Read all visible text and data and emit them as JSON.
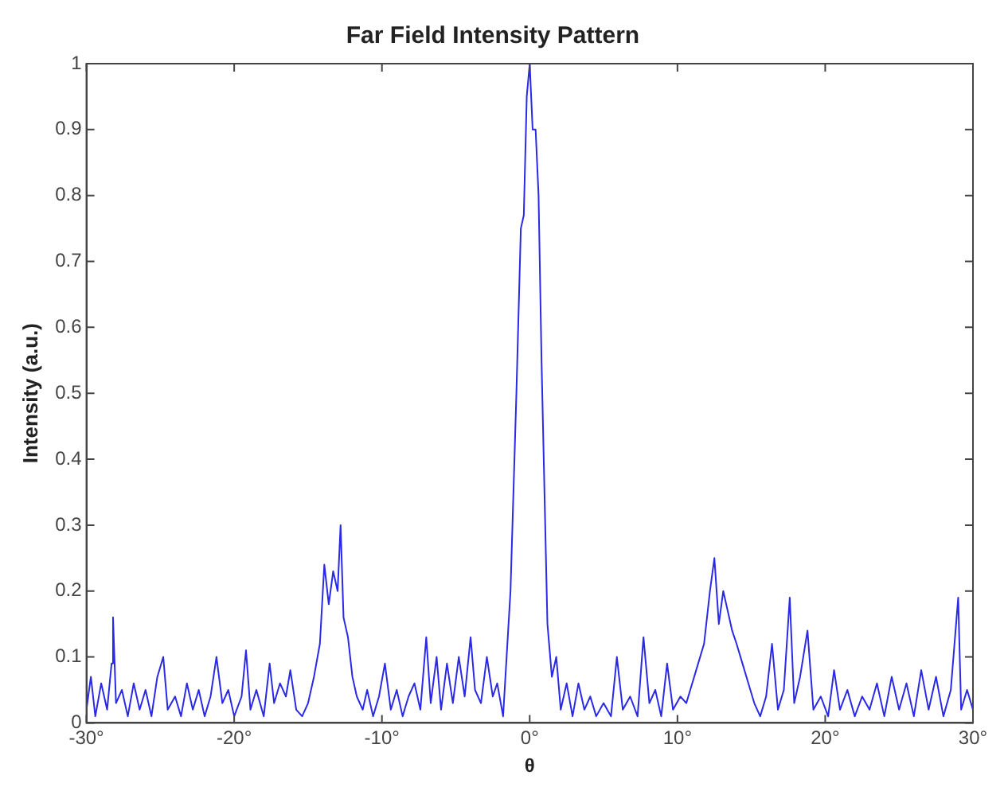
{
  "chart_data": {
    "type": "line",
    "title": "Far Field Intensity Pattern",
    "xlabel": "θ",
    "ylabel": "Intensity (a.u.)",
    "xlim": [
      -30,
      30
    ],
    "xticks": [
      {
        "value": -30,
        "label": "-30°"
      },
      {
        "value": -20,
        "label": "-20°"
      },
      {
        "value": -10,
        "label": "-10°"
      },
      {
        "value": 0,
        "label": "0°"
      },
      {
        "value": 10,
        "label": "10°"
      },
      {
        "value": 20,
        "label": "20°"
      },
      {
        "value": 30,
        "label": "30°"
      }
    ],
    "ylim": [
      0,
      1
    ],
    "yticks": [
      0,
      0.1,
      0.2,
      0.3,
      0.4,
      0.5,
      0.6,
      0.7,
      0.8,
      0.9,
      1
    ],
    "grid": false,
    "legend": false,
    "marker": "none",
    "line_style": "solid",
    "series": [
      {
        "color": "#2a2ae6",
        "x": [
          -30,
          -29.7,
          -29.4,
          -29,
          -28.6,
          -28.3,
          -28.2,
          -28,
          -27.6,
          -27.2,
          -26.8,
          -26.4,
          -26,
          -25.6,
          -25.2,
          -24.8,
          -24.5,
          -24,
          -23.6,
          -23.2,
          -22.8,
          -22.4,
          -22,
          -21.6,
          -21.2,
          -20.8,
          -20.4,
          -20,
          -19.5,
          -19.2,
          -18.9,
          -18.5,
          -18,
          -17.6,
          -17.3,
          -16.9,
          -16.5,
          -16.2,
          -15.8,
          -15.4,
          -15,
          -14.6,
          -14.2,
          -13.9,
          -13.6,
          -13.3,
          -13,
          -12.8,
          -12.6,
          -12.3,
          -12,
          -11.7,
          -11.3,
          -11,
          -10.6,
          -10.2,
          -9.8,
          -9.4,
          -9,
          -8.6,
          -8.2,
          -7.8,
          -7.4,
          -7,
          -6.7,
          -6.3,
          -6,
          -5.6,
          -5.2,
          -4.8,
          -4.4,
          -4,
          -3.7,
          -3.3,
          -2.9,
          -2.5,
          -2.2,
          -1.8,
          -1.3,
          -0.9,
          -0.6,
          -0.4,
          -0.2,
          0,
          0.2,
          0.4,
          0.6,
          0.8,
          1,
          1.2,
          1.5,
          1.8,
          2.1,
          2.5,
          2.9,
          3.3,
          3.7,
          4.1,
          4.5,
          5,
          5.5,
          5.9,
          6.3,
          6.8,
          7.3,
          7.7,
          8.1,
          8.5,
          8.9,
          9.3,
          9.7,
          10.2,
          10.6,
          11,
          11.4,
          11.8,
          12.2,
          12.5,
          12.8,
          13.1,
          13.4,
          13.7,
          14,
          14.4,
          14.8,
          15.2,
          15.6,
          16,
          16.4,
          16.8,
          17.2,
          17.6,
          17.9,
          18.3,
          18.8,
          19.2,
          19.7,
          20.2,
          20.6,
          21,
          21.5,
          22,
          22.5,
          23,
          23.5,
          24,
          24.5,
          25,
          25.5,
          26,
          26.5,
          27,
          27.5,
          28,
          28.5,
          29,
          29.2,
          29.6,
          30
        ],
        "values": [
          0.02,
          0.07,
          0.01,
          0.06,
          0.02,
          0.09,
          0.16,
          0.03,
          0.05,
          0.01,
          0.06,
          0.02,
          0.05,
          0.01,
          0.07,
          0.1,
          0.02,
          0.04,
          0.01,
          0.06,
          0.02,
          0.05,
          0.01,
          0.04,
          0.1,
          0.03,
          0.05,
          0.01,
          0.04,
          0.11,
          0.02,
          0.05,
          0.01,
          0.09,
          0.03,
          0.06,
          0.04,
          0.08,
          0.02,
          0.01,
          0.03,
          0.07,
          0.12,
          0.24,
          0.18,
          0.23,
          0.2,
          0.3,
          0.16,
          0.13,
          0.07,
          0.04,
          0.02,
          0.05,
          0.01,
          0.04,
          0.09,
          0.02,
          0.05,
          0.01,
          0.04,
          0.06,
          0.02,
          0.13,
          0.03,
          0.1,
          0.02,
          0.09,
          0.03,
          0.1,
          0.04,
          0.13,
          0.05,
          0.03,
          0.1,
          0.04,
          0.06,
          0.01,
          0.2,
          0.5,
          0.75,
          0.77,
          0.95,
          1,
          0.9,
          0.9,
          0.8,
          0.55,
          0.35,
          0.15,
          0.07,
          0.1,
          0.02,
          0.06,
          0.01,
          0.06,
          0.02,
          0.04,
          0.01,
          0.03,
          0.01,
          0.1,
          0.02,
          0.04,
          0.01,
          0.13,
          0.03,
          0.05,
          0.01,
          0.09,
          0.02,
          0.04,
          0.03,
          0.06,
          0.09,
          0.12,
          0.2,
          0.25,
          0.15,
          0.2,
          0.17,
          0.14,
          0.12,
          0.09,
          0.06,
          0.03,
          0.01,
          0.04,
          0.12,
          0.02,
          0.05,
          0.19,
          0.03,
          0.07,
          0.14,
          0.02,
          0.04,
          0.01,
          0.08,
          0.02,
          0.05,
          0.01,
          0.04,
          0.02,
          0.06,
          0.01,
          0.07,
          0.02,
          0.06,
          0.01,
          0.08,
          0.02,
          0.07,
          0.01,
          0.05,
          0.19,
          0.02,
          0.05,
          0.02
        ]
      }
    ]
  }
}
